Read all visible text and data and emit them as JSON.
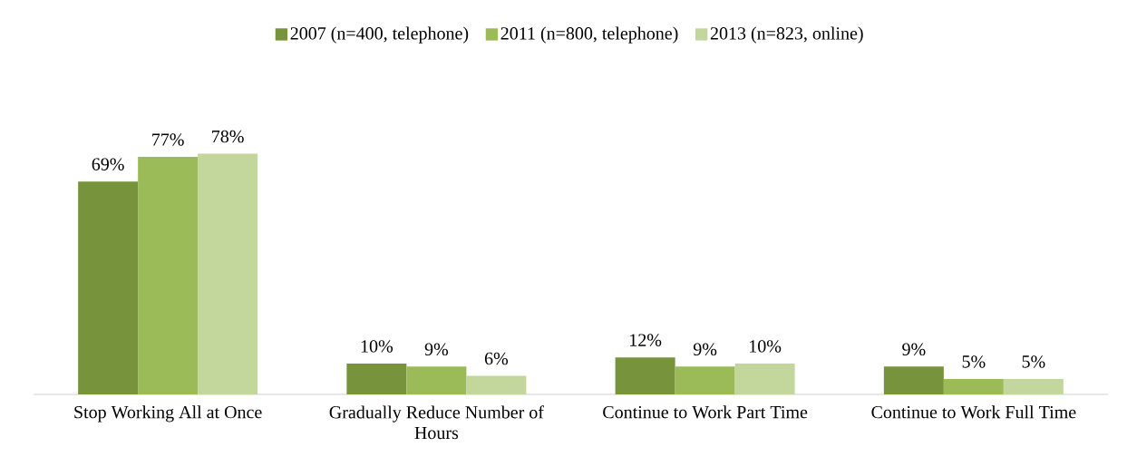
{
  "chart_data": {
    "type": "bar",
    "categories": [
      "Stop Working All at Once",
      "Gradually Reduce Number of Hours",
      "Continue to Work Part Time",
      "Continue to Work Full Time"
    ],
    "series": [
      {
        "name": "2007 (n=400, telephone)",
        "color": "#77933c",
        "values": [
          69,
          10,
          12,
          9
        ],
        "value_labels": [
          "69%",
          "10%",
          "12%",
          "9%"
        ]
      },
      {
        "name": "2011 (n=800, telephone)",
        "color": "#9bbb59",
        "values": [
          77,
          9,
          9,
          5
        ],
        "value_labels": [
          "77%",
          "9%",
          "9%",
          "5%"
        ]
      },
      {
        "name": "2013 (n=823, online)",
        "color": "#c3d69b",
        "values": [
          78,
          6,
          10,
          5
        ],
        "value_labels": [
          "78%",
          "6%",
          "10%",
          "5%"
        ]
      }
    ],
    "legend": "top"
  }
}
